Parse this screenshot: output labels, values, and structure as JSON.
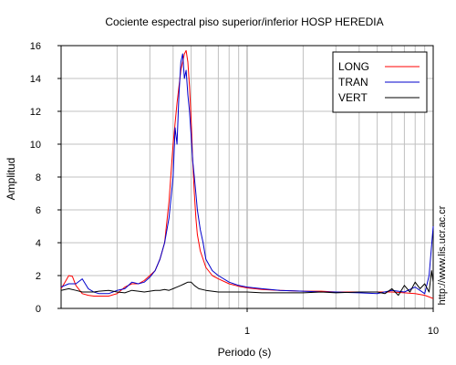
{
  "chart_data": {
    "type": "line",
    "title": "Cociente espectral piso superior/inferior  HOSP HEREDIA",
    "xlabel": "Periodo (s)",
    "ylabel": "Amplitud",
    "x_scale": "log",
    "xlim": [
      0.1,
      10
    ],
    "ylim": [
      0,
      16
    ],
    "xticks": [
      {
        "value": 1,
        "label": "1"
      },
      {
        "value": 10,
        "label": "10"
      }
    ],
    "yticks": [
      {
        "value": 0,
        "label": "0"
      },
      {
        "value": 2,
        "label": "2"
      },
      {
        "value": 4,
        "label": "4"
      },
      {
        "value": 6,
        "label": "6"
      },
      {
        "value": 8,
        "label": "8"
      },
      {
        "value": 10,
        "label": "10"
      },
      {
        "value": 12,
        "label": "12"
      },
      {
        "value": 14,
        "label": "14"
      },
      {
        "value": 16,
        "label": "16"
      }
    ],
    "grid": true,
    "legend_position": "top-right",
    "series": [
      {
        "name": "LONG",
        "color": "#ff0000",
        "x": [
          0.1,
          0.105,
          0.11,
          0.115,
          0.12,
          0.13,
          0.14,
          0.15,
          0.16,
          0.18,
          0.2,
          0.22,
          0.24,
          0.26,
          0.28,
          0.3,
          0.32,
          0.34,
          0.36,
          0.38,
          0.4,
          0.42,
          0.44,
          0.46,
          0.47,
          0.48,
          0.49,
          0.5,
          0.51,
          0.52,
          0.53,
          0.54,
          0.56,
          0.58,
          0.6,
          0.65,
          0.7,
          0.8,
          0.9,
          1.0,
          1.2,
          1.5,
          2.0,
          2.5,
          3.0,
          3.5,
          4.0,
          5.0,
          6.0,
          7.0,
          8.0,
          9.0,
          9.5,
          10.0
        ],
        "y": [
          1.2,
          1.6,
          2.0,
          1.95,
          1.4,
          0.9,
          0.8,
          0.75,
          0.75,
          0.75,
          0.9,
          1.3,
          1.5,
          1.5,
          1.7,
          2.0,
          2.3,
          3.0,
          4.0,
          6.5,
          10.0,
          12.5,
          14.5,
          15.5,
          15.7,
          15.0,
          13.5,
          11.5,
          9.0,
          7.0,
          5.5,
          4.5,
          3.5,
          3.0,
          2.5,
          2.0,
          1.8,
          1.5,
          1.35,
          1.25,
          1.15,
          1.1,
          1.05,
          1.05,
          1.0,
          1.0,
          1.0,
          1.0,
          1.0,
          0.95,
          0.9,
          0.8,
          0.7,
          0.6
        ]
      },
      {
        "name": "TRAN",
        "color": "#0000cc",
        "x": [
          0.1,
          0.11,
          0.12,
          0.13,
          0.14,
          0.15,
          0.16,
          0.18,
          0.2,
          0.22,
          0.24,
          0.26,
          0.28,
          0.3,
          0.32,
          0.34,
          0.36,
          0.38,
          0.4,
          0.41,
          0.42,
          0.43,
          0.44,
          0.45,
          0.46,
          0.47,
          0.48,
          0.49,
          0.5,
          0.51,
          0.52,
          0.53,
          0.54,
          0.56,
          0.58,
          0.6,
          0.65,
          0.7,
          0.8,
          0.9,
          1.0,
          1.2,
          1.5,
          2.0,
          2.5,
          3.0,
          4.0,
          5.0,
          6.0,
          7.0,
          8.0,
          9.0,
          9.5,
          10.0
        ],
        "y": [
          1.3,
          1.5,
          1.5,
          1.8,
          1.2,
          1.0,
          0.9,
          0.9,
          1.1,
          1.2,
          1.6,
          1.5,
          1.6,
          1.9,
          2.3,
          3.0,
          4.0,
          5.5,
          8.0,
          11.0,
          10.0,
          13.0,
          15.0,
          15.5,
          14.0,
          14.5,
          13.0,
          12.0,
          10.5,
          9.0,
          8.0,
          7.0,
          6.0,
          4.8,
          4.0,
          3.0,
          2.3,
          2.0,
          1.6,
          1.4,
          1.3,
          1.2,
          1.1,
          1.05,
          1.0,
          1.0,
          0.95,
          0.9,
          1.1,
          1.0,
          1.3,
          0.9,
          2.0,
          5.0
        ]
      },
      {
        "name": "VERT",
        "color": "#000000",
        "x": [
          0.1,
          0.11,
          0.12,
          0.13,
          0.14,
          0.15,
          0.16,
          0.18,
          0.2,
          0.22,
          0.24,
          0.26,
          0.28,
          0.3,
          0.32,
          0.34,
          0.36,
          0.38,
          0.4,
          0.42,
          0.44,
          0.46,
          0.48,
          0.5,
          0.52,
          0.55,
          0.6,
          0.7,
          0.8,
          0.9,
          1.0,
          1.2,
          1.5,
          2.0,
          2.5,
          3.0,
          4.0,
          5.0,
          5.5,
          6.0,
          6.5,
          7.0,
          7.5,
          8.0,
          8.5,
          9.0,
          9.5,
          9.8,
          10.0
        ],
        "y": [
          1.1,
          1.2,
          1.1,
          1.0,
          1.0,
          1.0,
          1.05,
          1.1,
          1.0,
          0.95,
          1.1,
          1.05,
          1.0,
          1.05,
          1.1,
          1.1,
          1.15,
          1.1,
          1.2,
          1.3,
          1.4,
          1.5,
          1.6,
          1.6,
          1.4,
          1.2,
          1.1,
          1.0,
          1.0,
          1.0,
          1.0,
          0.95,
          0.95,
          0.95,
          1.0,
          0.95,
          1.0,
          1.0,
          0.9,
          1.2,
          0.8,
          1.4,
          1.0,
          1.6,
          1.2,
          1.5,
          1.0,
          2.3,
          1.6
        ]
      }
    ],
    "annotations": [
      {
        "text": "http://www.lis.ucr.ac.cr",
        "orientation": "vertical"
      }
    ]
  }
}
